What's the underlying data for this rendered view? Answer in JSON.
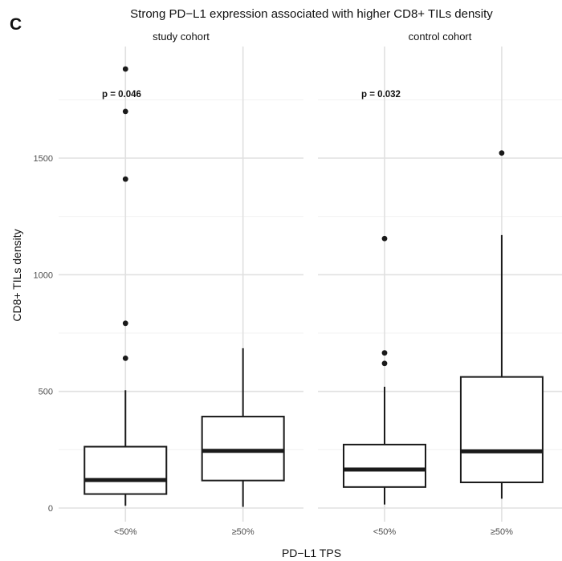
{
  "panel_label": "C",
  "chart_data": {
    "type": "box",
    "title": "Strong PD−L1 expression associated with higher CD8+ TILs density",
    "xlabel": "PD−L1 TPS",
    "ylabel": "CD8+ TILs density",
    "ylim": [
      -50,
      1900
    ],
    "yticks": [
      0,
      500,
      1000,
      1500
    ],
    "grid": true,
    "categories": [
      "<50%",
      "≥50%"
    ],
    "facets": [
      {
        "name": "study cohort",
        "p_value": "p = 0.046",
        "boxes": [
          {
            "category": "<50%",
            "min": 10,
            "q1": 60,
            "median": 120,
            "q3": 263,
            "max": 505,
            "outliers": [
              642,
              792,
              1410,
              1700,
              1882
            ]
          },
          {
            "category": "≥50%",
            "min": 5,
            "q1": 118,
            "median": 245,
            "q3": 392,
            "max": 685,
            "outliers": []
          }
        ]
      },
      {
        "name": "control cohort",
        "p_value": "p = 0.032",
        "boxes": [
          {
            "category": "<50%",
            "min": 15,
            "q1": 90,
            "median": 165,
            "q3": 272,
            "max": 520,
            "outliers": [
              620,
              665,
              1155
            ]
          },
          {
            "category": "≥50%",
            "min": 40,
            "q1": 110,
            "median": 243,
            "q3": 562,
            "max": 1170,
            "outliers": [
              1522
            ]
          }
        ]
      }
    ]
  }
}
